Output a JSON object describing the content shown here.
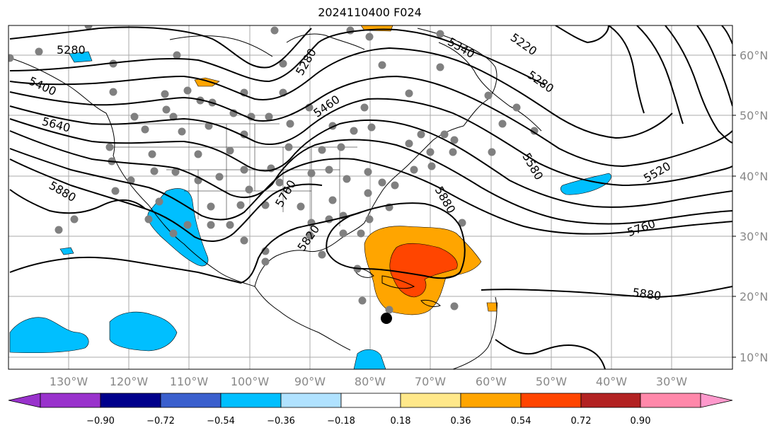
{
  "title": "2024110400 F024",
  "map": {
    "lat_labels": [
      "60°N",
      "50°N",
      "40°N",
      "30°N",
      "20°N",
      "10°N"
    ],
    "lon_labels": [
      "130°W",
      "120°W",
      "110°W",
      "100°W",
      "90°W",
      "80°W",
      "70°W",
      "60°W",
      "50°W",
      "40°W",
      "30°W"
    ],
    "contour_labels": [
      "5280",
      "5280",
      "5340",
      "5220",
      "5280",
      "5400",
      "5460",
      "5640",
      "5520",
      "5580",
      "5880",
      "5760",
      "5760",
      "5820",
      "5880",
      "5880"
    ],
    "colors": {
      "land_outline": "#000000",
      "gridline": "#aaaaaa",
      "station_dot": "#808080",
      "contour": "#000000"
    }
  },
  "colorbar": {
    "colors": [
      "#9932cc",
      "#00008b",
      "#3a5fcd",
      "#00bfff",
      "#b0e2ff",
      "#ffffff",
      "#ffffff",
      "#ffe88a",
      "#ffa500",
      "#ff4500",
      "#b22222",
      "#ff88aa",
      "#ff99cc"
    ],
    "tick_labels": [
      "−0.90",
      "−0.72",
      "−0.54",
      "−0.36",
      "−0.18",
      "0.18",
      "0.36",
      "0.54",
      "0.72",
      "0.90"
    ]
  }
}
